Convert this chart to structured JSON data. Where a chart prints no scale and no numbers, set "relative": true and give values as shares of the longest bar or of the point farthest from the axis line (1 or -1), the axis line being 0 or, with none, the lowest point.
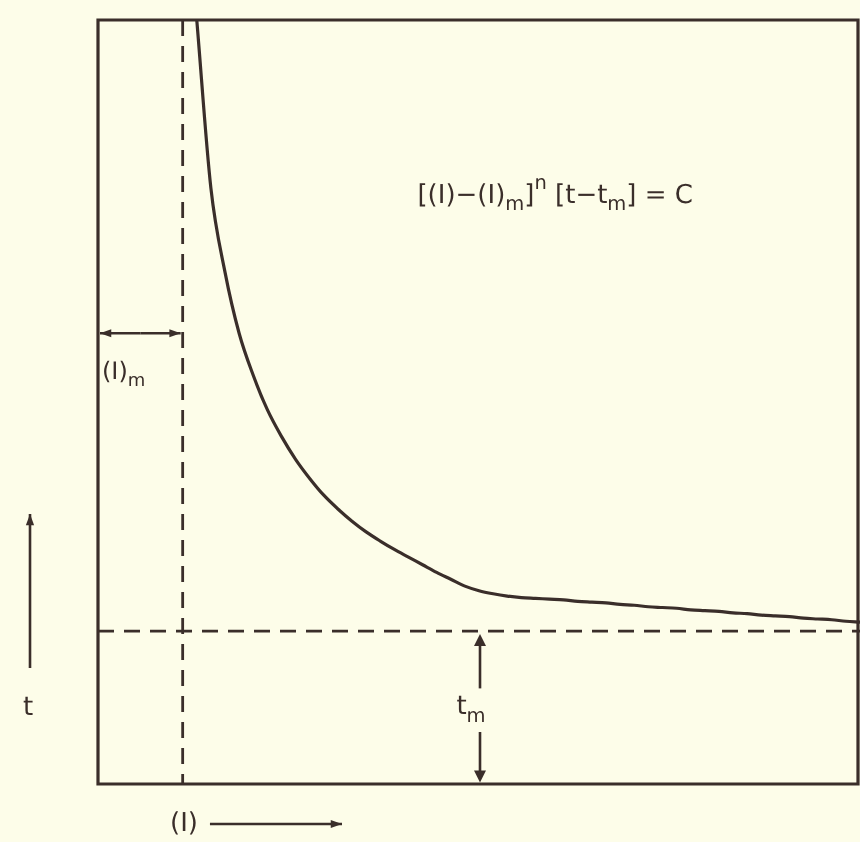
{
  "chart_data": {
    "type": "line",
    "relative": true,
    "xlabel": "(I)",
    "ylabel": "t",
    "marker": "none",
    "annotations": [
      "[(I)−(I)$_{m}$]$^{n}$ [t−t$_{m}$] = C",
      "(I)$_{m}$"
    ],
    "categories": [
      null,
      null,
      null,
      null,
      null,
      null,
      null,
      null,
      null,
      null,
      null,
      null,
      null,
      null,
      null,
      null,
      null,
      null,
      null,
      null,
      null,
      null,
      null,
      null,
      null,
      null,
      null,
      null,
      null,
      null,
      null,
      null,
      null,
      null,
      null,
      null,
      null,
      null,
      null,
      null,
      null,
      null,
      null,
      null,
      null,
      null,
      null,
      null,
      null,
      null,
      null,
      null,
      null,
      null,
      null
    ],
    "series": [
      {
        "color": "#3a2e2a",
        "values": [
          null,
          null,
          null,
          null,
          null,
          null,
          null,
          1,
          0.78,
          0.67,
          0.59,
          0.535,
          0.49,
          0.455,
          0.425,
          0.4,
          0.378,
          0.36,
          0.344,
          0.33,
          0.318,
          0.307,
          0.297,
          0.287,
          0.277,
          0.268,
          0.259,
          0.253,
          0.249,
          0.246,
          0.244,
          0.243,
          0.242,
          0.241,
          0.239,
          0.238,
          0.237,
          0.235,
          0.234,
          0.232,
          0.231,
          0.23,
          0.228,
          0.227,
          0.226,
          0.224,
          0.223,
          0.221,
          0.22,
          0.219,
          0.217,
          0.216,
          0.215,
          0.213,
          0.212
        ]
      }
    ],
    "ref_lines": [
      {
        "axis": "y",
        "value": 0.2,
        "label": "t$_{m}$",
        "color": "#3a2e2a",
        "line_style": "dashed"
      }
    ]
  }
}
